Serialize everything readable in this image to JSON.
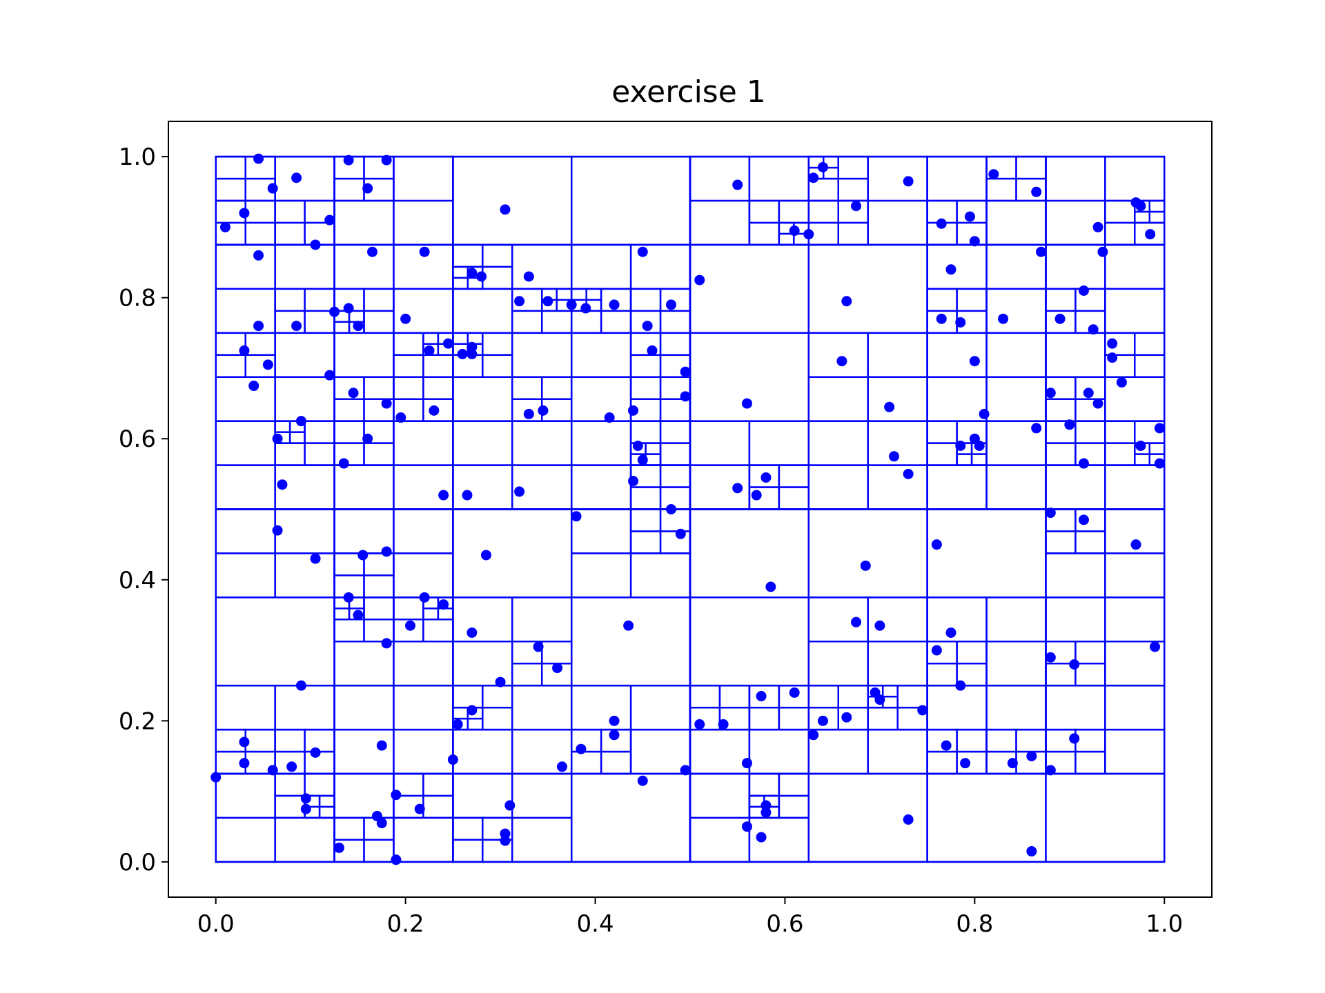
{
  "chart_data": {
    "type": "scatter",
    "title": "exercise 1",
    "xlabel": "",
    "ylabel": "",
    "xlim": [
      -0.05,
      1.05
    ],
    "ylim": [
      -0.05,
      1.05
    ],
    "xticks": [
      0.0,
      0.2,
      0.4,
      0.6,
      0.8,
      1.0
    ],
    "xtick_labels": [
      "0.0",
      "0.2",
      "0.4",
      "0.6",
      "0.8",
      "1.0"
    ],
    "yticks": [
      0.0,
      0.2,
      0.4,
      0.6,
      0.8,
      1.0
    ],
    "ytick_labels": [
      "0.0",
      "0.2",
      "0.4",
      "0.6",
      "0.8",
      "1.0"
    ],
    "grid": false,
    "color": "#0000ff",
    "overlay": "quadtree subdivision of the unit square (rectangles drawn as outlines)",
    "points": [
      [
        0.0,
        0.12
      ],
      [
        0.01,
        0.9
      ],
      [
        0.03,
        0.92
      ],
      [
        0.045,
        0.997
      ],
      [
        0.045,
        0.86
      ],
      [
        0.06,
        0.955
      ],
      [
        0.085,
        0.97
      ],
      [
        0.105,
        0.875
      ],
      [
        0.12,
        0.91
      ],
      [
        0.14,
        0.995
      ],
      [
        0.16,
        0.955
      ],
      [
        0.18,
        0.995
      ],
      [
        0.045,
        0.76
      ],
      [
        0.085,
        0.76
      ],
      [
        0.125,
        0.78
      ],
      [
        0.14,
        0.785
      ],
      [
        0.15,
        0.76
      ],
      [
        0.165,
        0.865
      ],
      [
        0.22,
        0.865
      ],
      [
        0.2,
        0.77
      ],
      [
        0.03,
        0.725
      ],
      [
        0.055,
        0.705
      ],
      [
        0.04,
        0.675
      ],
      [
        0.12,
        0.69
      ],
      [
        0.145,
        0.665
      ],
      [
        0.18,
        0.65
      ],
      [
        0.195,
        0.63
      ],
      [
        0.09,
        0.625
      ],
      [
        0.065,
        0.6
      ],
      [
        0.16,
        0.6
      ],
      [
        0.135,
        0.565
      ],
      [
        0.07,
        0.535
      ],
      [
        0.225,
        0.725
      ],
      [
        0.245,
        0.735
      ],
      [
        0.26,
        0.72
      ],
      [
        0.27,
        0.73
      ],
      [
        0.27,
        0.72
      ],
      [
        0.23,
        0.64
      ],
      [
        0.24,
        0.52
      ],
      [
        0.265,
        0.52
      ],
      [
        0.27,
        0.835
      ],
      [
        0.28,
        0.83
      ],
      [
        0.305,
        0.925
      ],
      [
        0.32,
        0.795
      ],
      [
        0.33,
        0.83
      ],
      [
        0.35,
        0.795
      ],
      [
        0.375,
        0.79
      ],
      [
        0.39,
        0.785
      ],
      [
        0.42,
        0.79
      ],
      [
        0.45,
        0.865
      ],
      [
        0.48,
        0.79
      ],
      [
        0.455,
        0.76
      ],
      [
        0.46,
        0.725
      ],
      [
        0.495,
        0.695
      ],
      [
        0.495,
        0.66
      ],
      [
        0.33,
        0.635
      ],
      [
        0.345,
        0.64
      ],
      [
        0.415,
        0.63
      ],
      [
        0.44,
        0.64
      ],
      [
        0.445,
        0.59
      ],
      [
        0.45,
        0.57
      ],
      [
        0.44,
        0.54
      ],
      [
        0.32,
        0.525
      ],
      [
        0.48,
        0.5
      ],
      [
        0.51,
        0.825
      ],
      [
        0.065,
        0.47
      ],
      [
        0.105,
        0.43
      ],
      [
        0.155,
        0.435
      ],
      [
        0.18,
        0.44
      ],
      [
        0.14,
        0.375
      ],
      [
        0.15,
        0.35
      ],
      [
        0.18,
        0.31
      ],
      [
        0.205,
        0.335
      ],
      [
        0.22,
        0.375
      ],
      [
        0.24,
        0.365
      ],
      [
        0.27,
        0.325
      ],
      [
        0.285,
        0.435
      ],
      [
        0.38,
        0.49
      ],
      [
        0.435,
        0.335
      ],
      [
        0.49,
        0.465
      ],
      [
        0.34,
        0.305
      ],
      [
        0.36,
        0.275
      ],
      [
        0.3,
        0.255
      ],
      [
        0.09,
        0.25
      ],
      [
        0.03,
        0.17
      ],
      [
        0.03,
        0.14
      ],
      [
        0.06,
        0.13
      ],
      [
        0.08,
        0.135
      ],
      [
        0.105,
        0.155
      ],
      [
        0.095,
        0.09
      ],
      [
        0.095,
        0.075
      ],
      [
        0.13,
        0.02
      ],
      [
        0.17,
        0.065
      ],
      [
        0.175,
        0.055
      ],
      [
        0.175,
        0.165
      ],
      [
        0.19,
        0.095
      ],
      [
        0.19,
        0.003
      ],
      [
        0.215,
        0.075
      ],
      [
        0.25,
        0.145
      ],
      [
        0.255,
        0.195
      ],
      [
        0.27,
        0.215
      ],
      [
        0.31,
        0.08
      ],
      [
        0.305,
        0.04
      ],
      [
        0.305,
        0.03
      ],
      [
        0.365,
        0.135
      ],
      [
        0.385,
        0.16
      ],
      [
        0.42,
        0.2
      ],
      [
        0.42,
        0.18
      ],
      [
        0.45,
        0.115
      ],
      [
        0.495,
        0.13
      ],
      [
        0.51,
        0.195
      ],
      [
        0.535,
        0.195
      ],
      [
        0.55,
        0.96
      ],
      [
        0.56,
        0.65
      ],
      [
        0.55,
        0.53
      ],
      [
        0.57,
        0.52
      ],
      [
        0.58,
        0.545
      ],
      [
        0.585,
        0.39
      ],
      [
        0.575,
        0.235
      ],
      [
        0.56,
        0.14
      ],
      [
        0.56,
        0.05
      ],
      [
        0.58,
        0.08
      ],
      [
        0.58,
        0.07
      ],
      [
        0.575,
        0.035
      ],
      [
        0.61,
        0.895
      ],
      [
        0.625,
        0.89
      ],
      [
        0.63,
        0.97
      ],
      [
        0.64,
        0.985
      ],
      [
        0.675,
        0.93
      ],
      [
        0.665,
        0.795
      ],
      [
        0.66,
        0.71
      ],
      [
        0.61,
        0.24
      ],
      [
        0.63,
        0.18
      ],
      [
        0.64,
        0.2
      ],
      [
        0.665,
        0.205
      ],
      [
        0.685,
        0.42
      ],
      [
        0.675,
        0.34
      ],
      [
        0.7,
        0.335
      ],
      [
        0.695,
        0.24
      ],
      [
        0.7,
        0.23
      ],
      [
        0.71,
        0.645
      ],
      [
        0.715,
        0.575
      ],
      [
        0.73,
        0.55
      ],
      [
        0.73,
        0.965
      ],
      [
        0.73,
        0.06
      ],
      [
        0.745,
        0.215
      ],
      [
        0.765,
        0.905
      ],
      [
        0.765,
        0.77
      ],
      [
        0.775,
        0.84
      ],
      [
        0.785,
        0.765
      ],
      [
        0.795,
        0.915
      ],
      [
        0.8,
        0.88
      ],
      [
        0.8,
        0.71
      ],
      [
        0.82,
        0.975
      ],
      [
        0.83,
        0.77
      ],
      [
        0.81,
        0.635
      ],
      [
        0.8,
        0.6
      ],
      [
        0.805,
        0.59
      ],
      [
        0.785,
        0.59
      ],
      [
        0.76,
        0.45
      ],
      [
        0.76,
        0.3
      ],
      [
        0.775,
        0.325
      ],
      [
        0.785,
        0.25
      ],
      [
        0.77,
        0.165
      ],
      [
        0.79,
        0.14
      ],
      [
        0.84,
        0.14
      ],
      [
        0.86,
        0.15
      ],
      [
        0.86,
        0.015
      ],
      [
        0.88,
        0.13
      ],
      [
        0.865,
        0.95
      ],
      [
        0.87,
        0.865
      ],
      [
        0.89,
        0.77
      ],
      [
        0.88,
        0.665
      ],
      [
        0.865,
        0.615
      ],
      [
        0.9,
        0.62
      ],
      [
        0.915,
        0.81
      ],
      [
        0.915,
        0.565
      ],
      [
        0.915,
        0.485
      ],
      [
        0.88,
        0.495
      ],
      [
        0.88,
        0.29
      ],
      [
        0.905,
        0.28
      ],
      [
        0.905,
        0.175
      ],
      [
        0.925,
        0.755
      ],
      [
        0.935,
        0.865
      ],
      [
        0.93,
        0.9
      ],
      [
        0.945,
        0.735
      ],
      [
        0.945,
        0.715
      ],
      [
        0.92,
        0.665
      ],
      [
        0.93,
        0.65
      ],
      [
        0.955,
        0.68
      ],
      [
        0.97,
        0.935
      ],
      [
        0.975,
        0.93
      ],
      [
        0.985,
        0.89
      ],
      [
        0.975,
        0.59
      ],
      [
        0.995,
        0.615
      ],
      [
        0.995,
        0.565
      ],
      [
        0.97,
        0.45
      ],
      [
        0.99,
        0.305
      ]
    ]
  }
}
